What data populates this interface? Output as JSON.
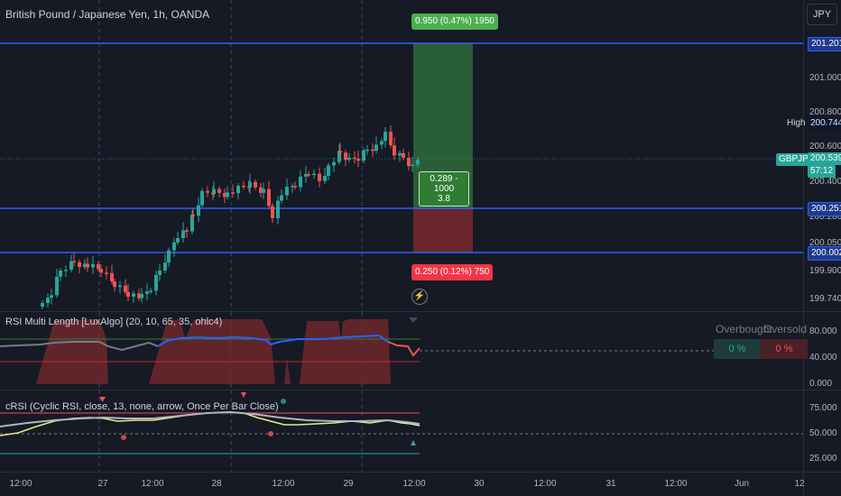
{
  "header": {
    "symbol_title": "British Pound / Japanese Yen, 1h, OANDA",
    "currency_button": "JPY"
  },
  "price_axis": {
    "ticks": [
      "201.000",
      "200.800",
      "200.600",
      "200.400",
      "200.200",
      "200.050",
      "199.900",
      "199.740"
    ],
    "tags": {
      "target_line": "201.201",
      "high_label": "High",
      "high_value": "200.744",
      "symbol_label": "GBPJPY",
      "last_price": "200.539",
      "countdown": "57:12",
      "entry_line": "200.251",
      "stop_line": "200.002"
    }
  },
  "position_tool": {
    "target_label": "0.950 (0.47%) 1950",
    "mid_label_line1": "0.289 - 1000",
    "mid_label_line2": "3.8",
    "stop_label": "0.250 (0.12%) 750"
  },
  "alert_icon": "lightning-icon",
  "rsi_pane": {
    "title": "RSI Multi Length [LuxAlgo] (20, 10, 65, 35, ohlc4)",
    "ticks": [
      "80.000",
      "40.000",
      "0.000"
    ],
    "overbought_label": "Overbought",
    "oversold_label": "Oversold",
    "overbought_value": "0 %",
    "oversold_value": "0 %"
  },
  "crsi_pane": {
    "title": "cRSI (Cyclic RSI, close, 13, none, arrow, Once Per Bar Close)",
    "ticks": [
      "75.000",
      "50.000",
      "25.000"
    ]
  },
  "time_axis": {
    "labels": [
      "12:00",
      "27",
      "12:00",
      "28",
      "12:00",
      "29",
      "12:00",
      "30",
      "12:00",
      "31",
      "12:00",
      "Jun",
      "12"
    ]
  },
  "colors": {
    "background": "#161a25",
    "up_candle": "#26a69a",
    "down_candle": "#ef5350",
    "horizontal_line": "#2962ff",
    "profit_zone": "#2e6b3a",
    "loss_zone": "#7a2a2e"
  }
}
